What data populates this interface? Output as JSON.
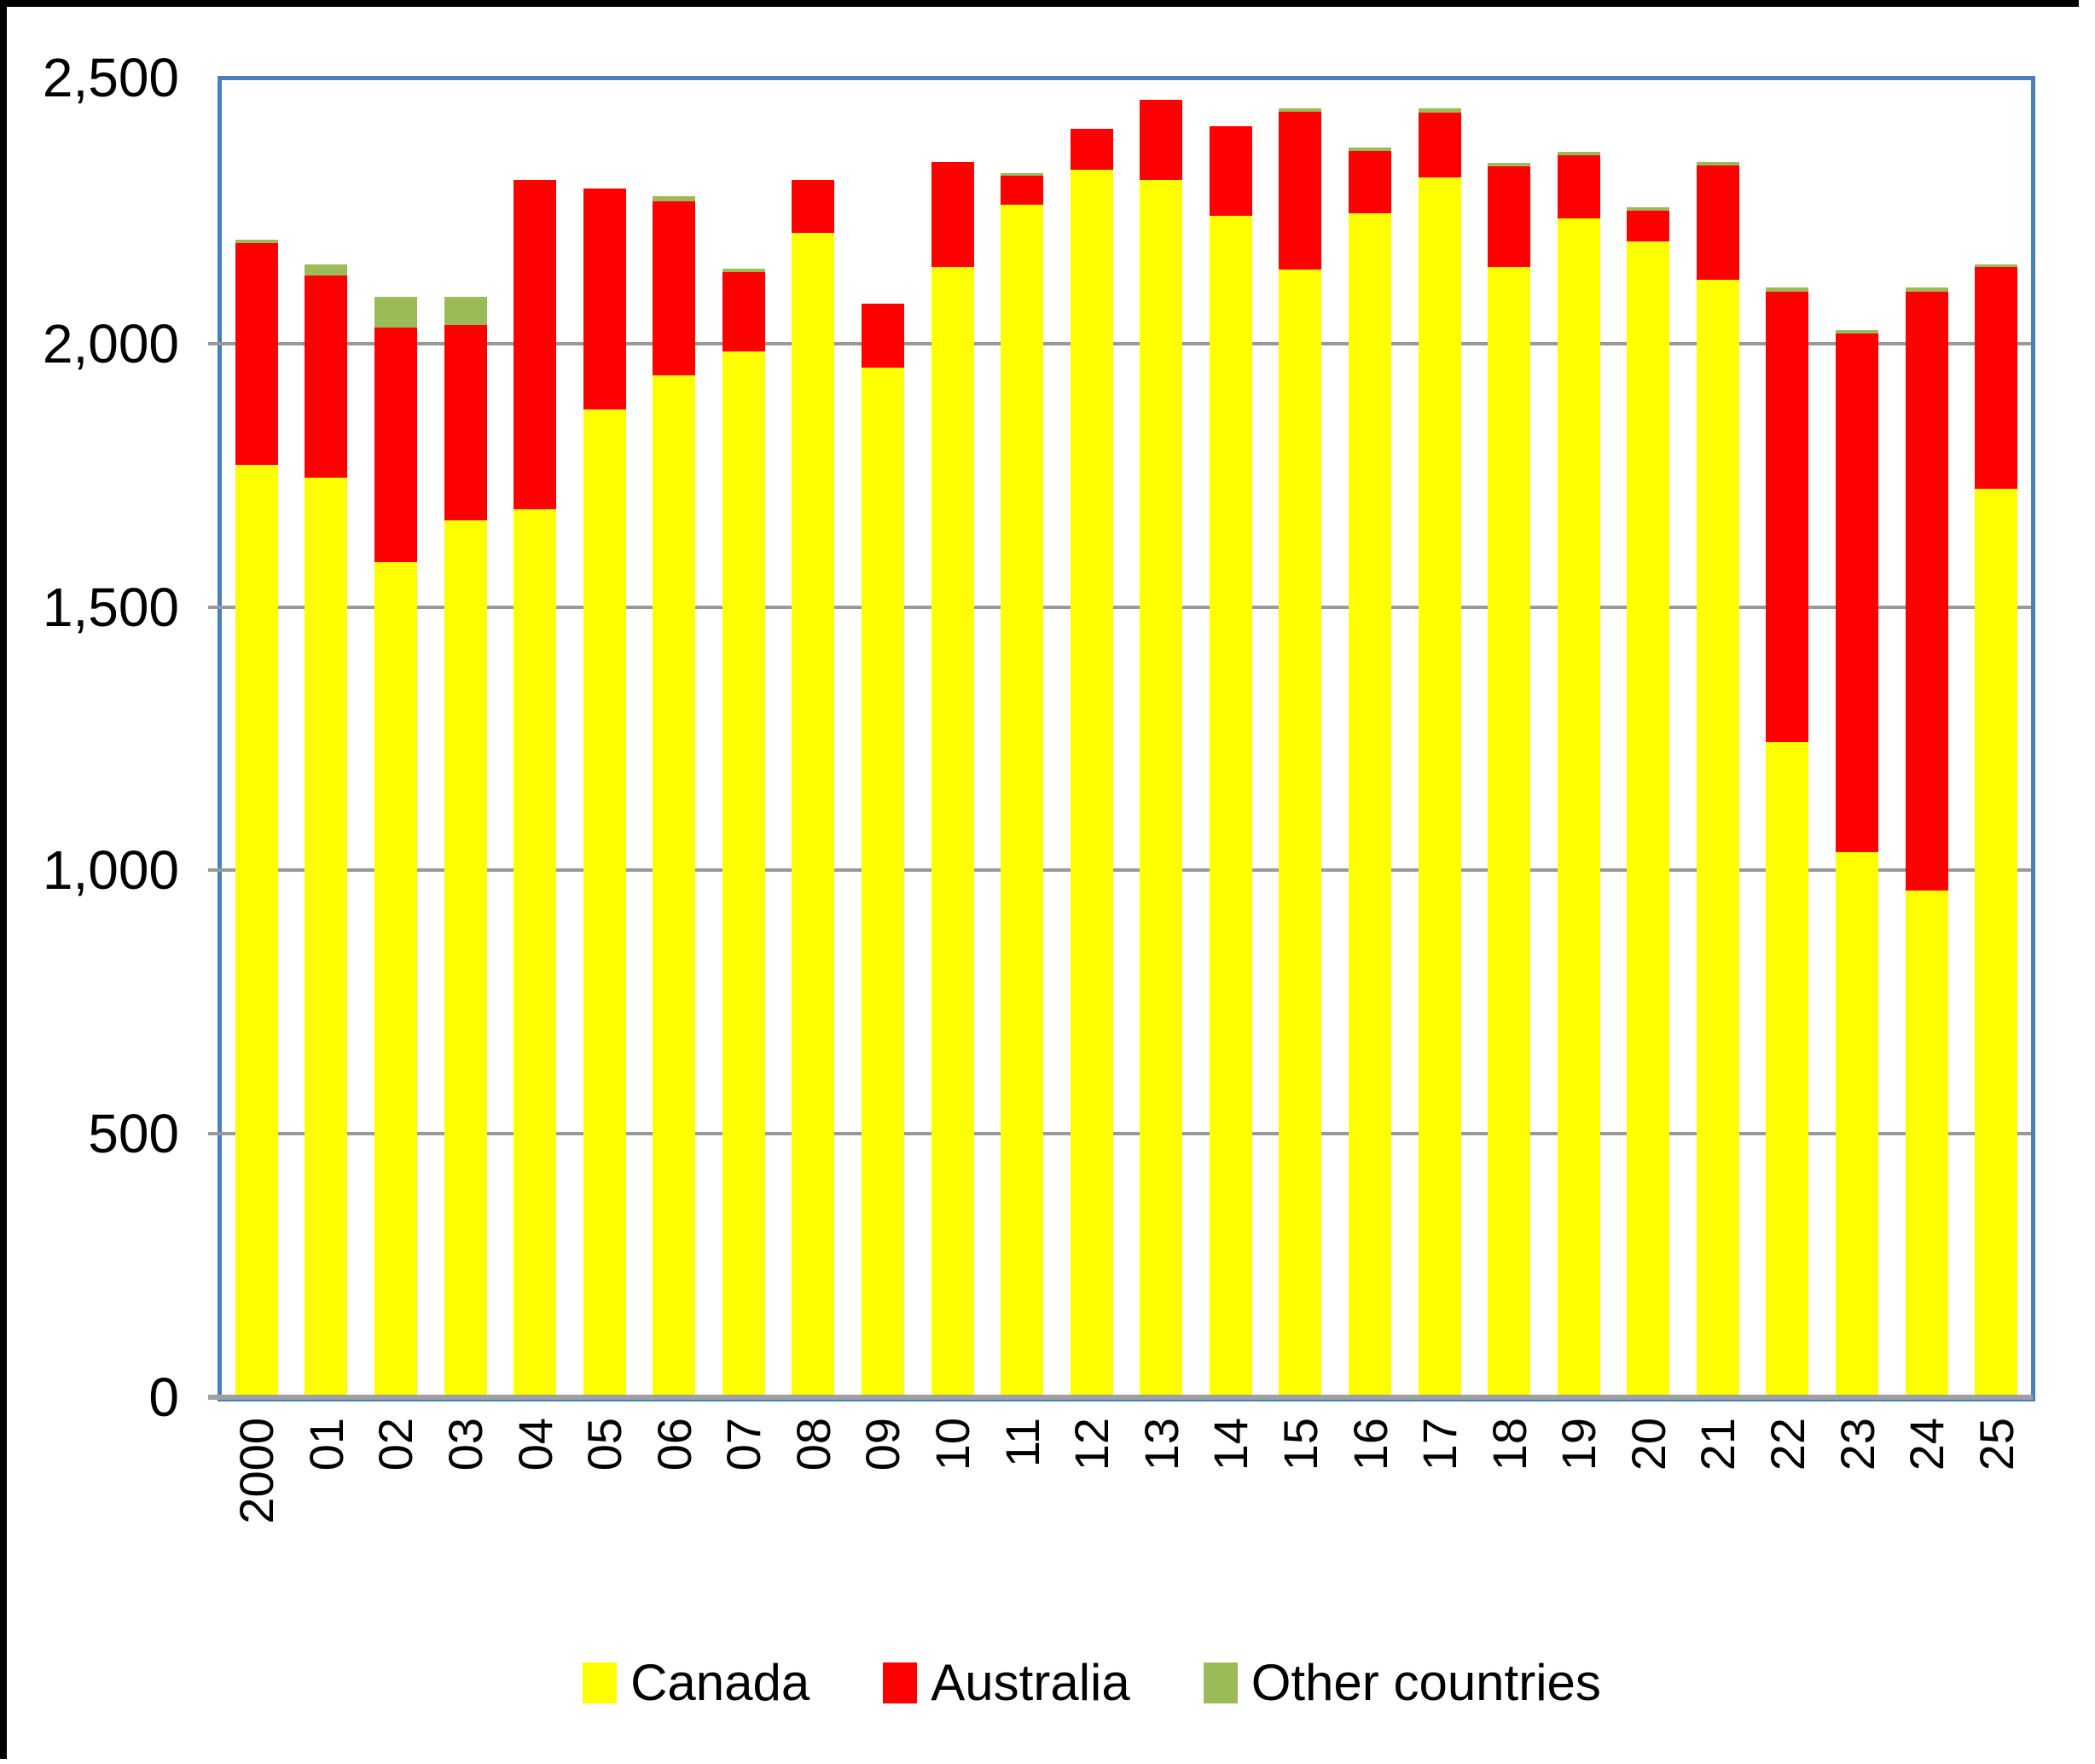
{
  "chart_data": {
    "type": "bar",
    "stacked": true,
    "title": "",
    "xlabel": "",
    "ylabel": "",
    "categories": [
      "2000",
      "01",
      "02",
      "03",
      "04",
      "05",
      "06",
      "07",
      "08",
      "09",
      "10",
      "11",
      "12",
      "13",
      "14",
      "15",
      "16",
      "17",
      "18",
      "19",
      "20",
      "21",
      "22",
      "23",
      "24",
      "25"
    ],
    "series": [
      {
        "name": "Canada",
        "color": "#ffff00",
        "values": [
          1770,
          1745,
          1585,
          1665,
          1685,
          1875,
          1940,
          1985,
          2210,
          1955,
          2145,
          2263,
          2330,
          2310,
          2243,
          2140,
          2248,
          2316,
          2145,
          2237,
          2194,
          2121,
          1243,
          1035,
          962,
          1724
        ]
      },
      {
        "name": "Australia",
        "color": "#ff0000",
        "values": [
          420,
          385,
          445,
          370,
          625,
          420,
          330,
          150,
          100,
          120,
          200,
          55,
          78,
          152,
          170,
          300,
          118,
          123,
          192,
          121,
          58,
          217,
          855,
          984,
          1136,
          421
        ]
      },
      {
        "name": "Other countries",
        "color": "#9bbb59",
        "values": [
          7,
          20,
          58,
          53,
          0,
          0,
          10,
          7,
          0,
          0,
          0,
          6,
          0,
          0,
          0,
          7,
          6,
          8,
          6,
          6,
          6,
          7,
          8,
          6,
          8,
          6
        ]
      }
    ],
    "ylim": [
      0,
      2500
    ],
    "y_ticks": [
      "2,500",
      "2,000",
      "1,500",
      "1,000",
      "500",
      "0"
    ],
    "y_tick_values": [
      2500,
      2000,
      1500,
      1000,
      500,
      0
    ],
    "grid": true,
    "legend_position": "bottom"
  },
  "style": {
    "plot_border_color": "#4a7ebd",
    "gridline_color": "#999999",
    "axis_line_color": "#a0a0a0",
    "text_color": "#000000",
    "frame_color": "#000000",
    "background": "#ffffff"
  }
}
